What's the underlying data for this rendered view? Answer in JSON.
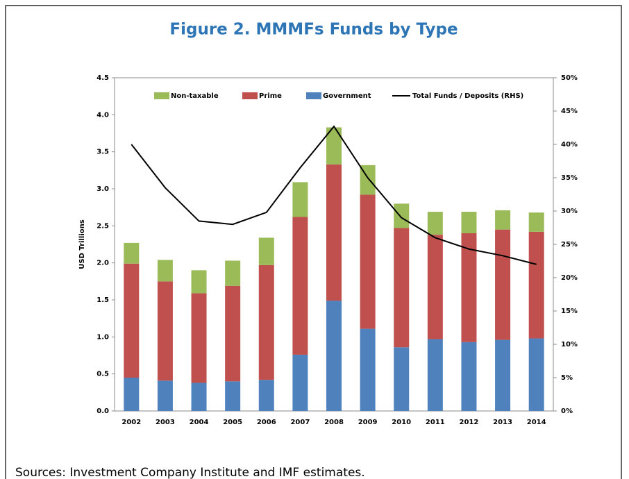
{
  "chart_data": {
    "type": "bar",
    "stacked": true,
    "title": "Figure 2. MMMFs Funds by Type",
    "ylabel": "USD Trillions",
    "source": "Sources: Investment Company Institute and IMF estimates.",
    "categories": [
      "2002",
      "2003",
      "2004",
      "2005",
      "2006",
      "2007",
      "2008",
      "2009",
      "2010",
      "2011",
      "2012",
      "2013",
      "2014"
    ],
    "series": [
      {
        "name": "Government",
        "color": "#4f81bd",
        "values": [
          0.45,
          0.41,
          0.38,
          0.4,
          0.42,
          0.76,
          1.49,
          1.11,
          0.86,
          0.97,
          0.93,
          0.96,
          0.98
        ]
      },
      {
        "name": "Prime",
        "color": "#c0504d",
        "values": [
          1.54,
          1.34,
          1.21,
          1.29,
          1.55,
          1.86,
          1.84,
          1.81,
          1.61,
          1.41,
          1.47,
          1.49,
          1.44
        ]
      },
      {
        "name": "Non-taxable",
        "color": "#9bbb59",
        "values": [
          0.28,
          0.29,
          0.31,
          0.34,
          0.37,
          0.47,
          0.5,
          0.4,
          0.33,
          0.31,
          0.29,
          0.26,
          0.26
        ]
      },
      {
        "name": "Total Funds / Deposits (RHS)",
        "color": "#000000",
        "axis": "y2",
        "values": [
          40,
          33.5,
          28.5,
          28,
          29.8,
          36.5,
          42.7,
          35,
          29,
          26,
          24.3,
          23.3,
          22
        ]
      }
    ],
    "legend_order": [
      2,
      1,
      0,
      3
    ],
    "ylim": [
      0,
      4.5
    ],
    "yticks": [
      {
        "value": 0,
        "label": "0.0"
      },
      0.5,
      {
        "value": 1,
        "label": "1.0"
      },
      1.5,
      {
        "value": 2,
        "label": "2.0"
      },
      2.5,
      {
        "value": 3,
        "label": "3.0"
      },
      3.5,
      {
        "value": 4,
        "label": "4.0"
      },
      4.5
    ],
    "y2lim": [
      0,
      50
    ],
    "y2ticks": [
      {
        "value": 0,
        "label": "0%"
      },
      {
        "value": 5,
        "label": "5%"
      },
      {
        "value": 10,
        "label": "10%"
      },
      {
        "value": 15,
        "label": "15%"
      },
      {
        "value": 20,
        "label": "20%"
      },
      {
        "value": 25,
        "label": "25%"
      },
      {
        "value": 30,
        "label": "30%"
      },
      {
        "value": 35,
        "label": "35%"
      },
      {
        "value": 40,
        "label": "40%"
      },
      {
        "value": 45,
        "label": "45%"
      },
      {
        "value": 50,
        "label": "50%"
      }
    ],
    "grid": false
  }
}
